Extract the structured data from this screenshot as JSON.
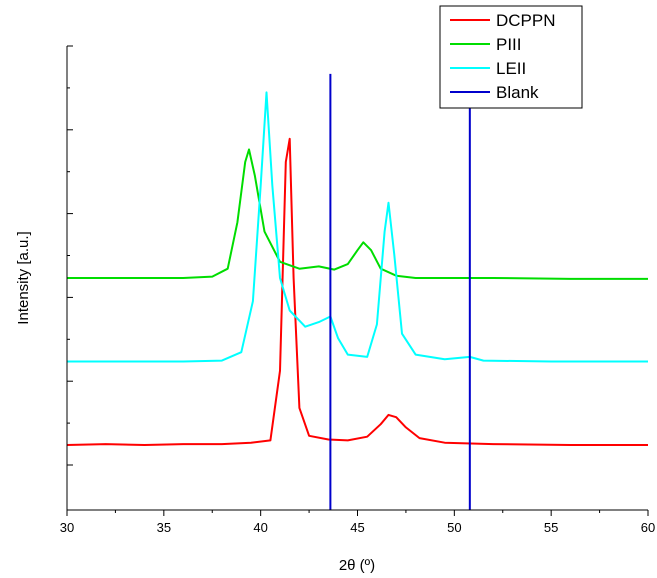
{
  "chart_data": {
    "type": "line",
    "xlabel": "2θ (º)",
    "ylabel": "Intensity [a.u.]",
    "xlim": [
      30,
      60
    ],
    "x_ticks": [
      "30",
      "35",
      "40",
      "45",
      "50",
      "55",
      "60"
    ],
    "y_tick_count": 5,
    "legend_position": "top-right",
    "series": [
      {
        "name": "DCPPN",
        "color": "#ff0000",
        "points": [
          [
            30,
            0.14
          ],
          [
            32,
            0.142
          ],
          [
            34,
            0.14
          ],
          [
            36,
            0.142
          ],
          [
            38,
            0.142
          ],
          [
            39.5,
            0.145
          ],
          [
            40.5,
            0.15
          ],
          [
            41.0,
            0.3
          ],
          [
            41.3,
            0.75
          ],
          [
            41.5,
            0.8
          ],
          [
            41.7,
            0.5
          ],
          [
            42.0,
            0.22
          ],
          [
            42.5,
            0.16
          ],
          [
            43.5,
            0.152
          ],
          [
            44.5,
            0.15
          ],
          [
            45.5,
            0.158
          ],
          [
            46.2,
            0.185
          ],
          [
            46.6,
            0.205
          ],
          [
            47.0,
            0.2
          ],
          [
            47.5,
            0.178
          ],
          [
            48.2,
            0.155
          ],
          [
            49.5,
            0.145
          ],
          [
            52,
            0.142
          ],
          [
            56,
            0.14
          ],
          [
            60,
            0.14
          ]
        ]
      },
      {
        "name": "PIII",
        "color": "#00dd00",
        "points": [
          [
            30,
            0.5
          ],
          [
            33,
            0.5
          ],
          [
            36,
            0.5
          ],
          [
            37.5,
            0.503
          ],
          [
            38.3,
            0.52
          ],
          [
            38.8,
            0.62
          ],
          [
            39.2,
            0.75
          ],
          [
            39.4,
            0.777
          ],
          [
            39.7,
            0.72
          ],
          [
            40.2,
            0.6
          ],
          [
            41,
            0.535
          ],
          [
            42,
            0.52
          ],
          [
            43,
            0.525
          ],
          [
            43.8,
            0.518
          ],
          [
            44.5,
            0.53
          ],
          [
            45.0,
            0.56
          ],
          [
            45.3,
            0.577
          ],
          [
            45.7,
            0.56
          ],
          [
            46.2,
            0.52
          ],
          [
            47,
            0.505
          ],
          [
            48,
            0.5
          ],
          [
            52,
            0.5
          ],
          [
            56,
            0.498
          ],
          [
            60,
            0.498
          ]
        ]
      },
      {
        "name": "LEII",
        "color": "#00ffff",
        "points": [
          [
            30,
            0.32
          ],
          [
            33,
            0.32
          ],
          [
            36,
            0.32
          ],
          [
            38,
            0.322
          ],
          [
            39,
            0.34
          ],
          [
            39.6,
            0.45
          ],
          [
            40.0,
            0.7
          ],
          [
            40.3,
            0.9
          ],
          [
            40.6,
            0.7
          ],
          [
            41.0,
            0.5
          ],
          [
            41.5,
            0.43
          ],
          [
            42.3,
            0.395
          ],
          [
            43,
            0.405
          ],
          [
            43.6,
            0.417
          ],
          [
            44.0,
            0.37
          ],
          [
            44.5,
            0.335
          ],
          [
            45.5,
            0.33
          ],
          [
            46.0,
            0.4
          ],
          [
            46.4,
            0.6
          ],
          [
            46.6,
            0.662
          ],
          [
            46.9,
            0.55
          ],
          [
            47.3,
            0.38
          ],
          [
            48,
            0.335
          ],
          [
            49.5,
            0.325
          ],
          [
            50.8,
            0.33
          ],
          [
            51.5,
            0.322
          ],
          [
            55,
            0.32
          ],
          [
            60,
            0.32
          ]
        ]
      },
      {
        "name": "Blank",
        "color": "#0000cc",
        "lines_at": [
          43.6,
          50.8
        ],
        "line_tops": [
          0.94,
          0.92
        ]
      }
    ]
  }
}
